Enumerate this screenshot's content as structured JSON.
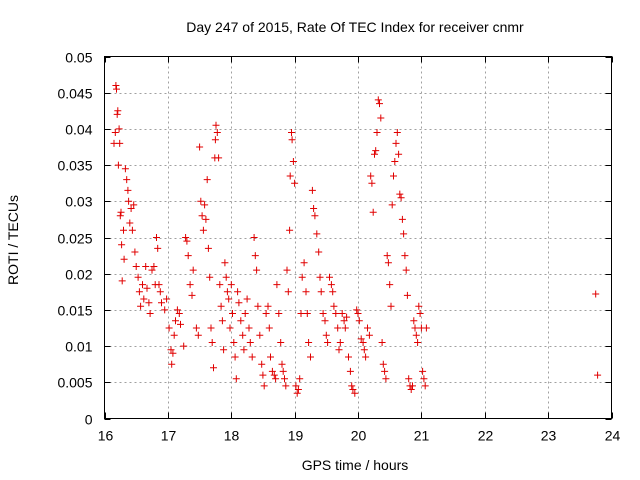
{
  "chart_data": {
    "type": "scatter",
    "title": "Day 247 of 2015, Rate Of TEC Index for receiver cnmr",
    "xlabel": "GPS time / hours",
    "ylabel": "ROTI / TECUs",
    "xlim": [
      16,
      24
    ],
    "ylim": [
      0,
      0.05
    ],
    "xticks": [
      "16",
      "17",
      "18",
      "19",
      "20",
      "21",
      "22",
      "23",
      "24"
    ],
    "yticks": [
      "0",
      "0.005",
      "0.01",
      "0.015",
      "0.02",
      "0.025",
      "0.03",
      "0.035",
      "0.04",
      "0.045",
      "0.05"
    ],
    "grid": true,
    "marker": "plus",
    "color": "#e00000",
    "series": [
      {
        "name": "ROTI",
        "points": [
          [
            16.15,
            0.038
          ],
          [
            16.17,
            0.0395
          ],
          [
            16.18,
            0.046
          ],
          [
            16.19,
            0.0455
          ],
          [
            16.2,
            0.042
          ],
          [
            16.21,
            0.0425
          ],
          [
            16.22,
            0.035
          ],
          [
            16.23,
            0.04
          ],
          [
            16.24,
            0.038
          ],
          [
            16.25,
            0.028
          ],
          [
            16.26,
            0.0285
          ],
          [
            16.27,
            0.024
          ],
          [
            16.28,
            0.019
          ],
          [
            16.3,
            0.026
          ],
          [
            16.31,
            0.022
          ],
          [
            16.33,
            0.0345
          ],
          [
            16.35,
            0.033
          ],
          [
            16.37,
            0.0315
          ],
          [
            16.38,
            0.03
          ],
          [
            16.4,
            0.027
          ],
          [
            16.42,
            0.029
          ],
          [
            16.44,
            0.026
          ],
          [
            16.46,
            0.0295
          ],
          [
            16.48,
            0.023
          ],
          [
            16.5,
            0.021
          ],
          [
            16.53,
            0.0195
          ],
          [
            16.55,
            0.0175
          ],
          [
            16.57,
            0.0155
          ],
          [
            16.6,
            0.0185
          ],
          [
            16.62,
            0.0165
          ],
          [
            16.65,
            0.021
          ],
          [
            16.67,
            0.018
          ],
          [
            16.7,
            0.016
          ],
          [
            16.72,
            0.0145
          ],
          [
            16.75,
            0.0205
          ],
          [
            16.78,
            0.021
          ],
          [
            16.8,
            0.0185
          ],
          [
            16.82,
            0.025
          ],
          [
            16.84,
            0.0235
          ],
          [
            16.86,
            0.0185
          ],
          [
            16.88,
            0.0175
          ],
          [
            16.9,
            0.016
          ],
          [
            16.95,
            0.015
          ],
          [
            16.98,
            0.0165
          ],
          [
            17.02,
            0.0125
          ],
          [
            17.05,
            0.0095
          ],
          [
            17.06,
            0.0075
          ],
          [
            17.08,
            0.009
          ],
          [
            17.1,
            0.0115
          ],
          [
            17.12,
            0.0135
          ],
          [
            17.15,
            0.015
          ],
          [
            17.18,
            0.0145
          ],
          [
            17.2,
            0.013
          ],
          [
            17.25,
            0.01
          ],
          [
            17.28,
            0.025
          ],
          [
            17.3,
            0.0245
          ],
          [
            17.32,
            0.0225
          ],
          [
            17.35,
            0.0185
          ],
          [
            17.38,
            0.017
          ],
          [
            17.4,
            0.0205
          ],
          [
            17.45,
            0.0125
          ],
          [
            17.48,
            0.0115
          ],
          [
            17.5,
            0.0375
          ],
          [
            17.52,
            0.03
          ],
          [
            17.54,
            0.028
          ],
          [
            17.56,
            0.026
          ],
          [
            17.58,
            0.0295
          ],
          [
            17.6,
            0.0275
          ],
          [
            17.62,
            0.033
          ],
          [
            17.64,
            0.0235
          ],
          [
            17.66,
            0.0195
          ],
          [
            17.68,
            0.0125
          ],
          [
            17.7,
            0.0105
          ],
          [
            17.72,
            0.007
          ],
          [
            17.74,
            0.036
          ],
          [
            17.75,
            0.0385
          ],
          [
            17.76,
            0.0405
          ],
          [
            17.78,
            0.0395
          ],
          [
            17.8,
            0.036
          ],
          [
            17.82,
            0.0185
          ],
          [
            17.84,
            0.0155
          ],
          [
            17.86,
            0.0135
          ],
          [
            17.88,
            0.0095
          ],
          [
            17.9,
            0.0215
          ],
          [
            17.92,
            0.0195
          ],
          [
            17.94,
            0.0175
          ],
          [
            17.96,
            0.0165
          ],
          [
            17.98,
            0.0125
          ],
          [
            18.0,
            0.0185
          ],
          [
            18.02,
            0.0145
          ],
          [
            18.04,
            0.0105
          ],
          [
            18.06,
            0.0085
          ],
          [
            18.08,
            0.0055
          ],
          [
            18.1,
            0.0175
          ],
          [
            18.12,
            0.016
          ],
          [
            18.15,
            0.0135
          ],
          [
            18.18,
            0.0115
          ],
          [
            18.2,
            0.0095
          ],
          [
            18.22,
            0.0145
          ],
          [
            18.25,
            0.0165
          ],
          [
            18.28,
            0.0125
          ],
          [
            18.3,
            0.0105
          ],
          [
            18.33,
            0.0085
          ],
          [
            18.36,
            0.025
          ],
          [
            18.38,
            0.0225
          ],
          [
            18.4,
            0.0205
          ],
          [
            18.42,
            0.0155
          ],
          [
            18.45,
            0.0115
          ],
          [
            18.48,
            0.0075
          ],
          [
            18.5,
            0.006
          ],
          [
            18.52,
            0.0045
          ],
          [
            18.55,
            0.0145
          ],
          [
            18.58,
            0.0155
          ],
          [
            18.6,
            0.0125
          ],
          [
            18.62,
            0.0085
          ],
          [
            18.65,
            0.0065
          ],
          [
            18.68,
            0.006
          ],
          [
            18.7,
            0.0055
          ],
          [
            18.72,
            0.0185
          ],
          [
            18.75,
            0.0145
          ],
          [
            18.78,
            0.0105
          ],
          [
            18.8,
            0.0075
          ],
          [
            18.82,
            0.0065
          ],
          [
            18.84,
            0.0055
          ],
          [
            18.86,
            0.0045
          ],
          [
            18.88,
            0.0205
          ],
          [
            18.9,
            0.0175
          ],
          [
            18.92,
            0.026
          ],
          [
            18.93,
            0.0335
          ],
          [
            18.95,
            0.0395
          ],
          [
            18.96,
            0.0385
          ],
          [
            18.98,
            0.0355
          ],
          [
            19.0,
            0.0325
          ],
          [
            19.02,
            0.0045
          ],
          [
            19.04,
            0.0035
          ],
          [
            19.06,
            0.004
          ],
          [
            19.08,
            0.0055
          ],
          [
            19.1,
            0.0145
          ],
          [
            19.12,
            0.0195
          ],
          [
            19.15,
            0.0215
          ],
          [
            19.18,
            0.0175
          ],
          [
            19.2,
            0.0145
          ],
          [
            19.22,
            0.0105
          ],
          [
            19.25,
            0.0085
          ],
          [
            19.28,
            0.0315
          ],
          [
            19.3,
            0.029
          ],
          [
            19.32,
            0.028
          ],
          [
            19.35,
            0.0255
          ],
          [
            19.38,
            0.023
          ],
          [
            19.4,
            0.0195
          ],
          [
            19.42,
            0.0175
          ],
          [
            19.45,
            0.0145
          ],
          [
            19.48,
            0.0135
          ],
          [
            19.5,
            0.0115
          ],
          [
            19.52,
            0.0105
          ],
          [
            19.55,
            0.0195
          ],
          [
            19.58,
            0.0185
          ],
          [
            19.6,
            0.0175
          ],
          [
            19.62,
            0.0155
          ],
          [
            19.65,
            0.0145
          ],
          [
            19.68,
            0.0125
          ],
          [
            19.7,
            0.0095
          ],
          [
            19.72,
            0.0105
          ],
          [
            19.75,
            0.0145
          ],
          [
            19.78,
            0.0135
          ],
          [
            19.8,
            0.0125
          ],
          [
            19.82,
            0.014
          ],
          [
            19.85,
            0.0085
          ],
          [
            19.88,
            0.0065
          ],
          [
            19.9,
            0.0045
          ],
          [
            19.92,
            0.004
          ],
          [
            19.95,
            0.0035
          ],
          [
            19.98,
            0.015
          ],
          [
            20.0,
            0.0145
          ],
          [
            20.02,
            0.0135
          ],
          [
            20.05,
            0.011
          ],
          [
            20.08,
            0.0105
          ],
          [
            20.1,
            0.0095
          ],
          [
            20.12,
            0.0085
          ],
          [
            20.15,
            0.0125
          ],
          [
            20.18,
            0.0115
          ],
          [
            20.2,
            0.0335
          ],
          [
            20.22,
            0.0325
          ],
          [
            20.24,
            0.0285
          ],
          [
            20.26,
            0.0365
          ],
          [
            20.28,
            0.037
          ],
          [
            20.3,
            0.0395
          ],
          [
            20.32,
            0.044
          ],
          [
            20.34,
            0.0435
          ],
          [
            20.36,
            0.0415
          ],
          [
            20.38,
            0.0105
          ],
          [
            20.4,
            0.0075
          ],
          [
            20.42,
            0.0065
          ],
          [
            20.44,
            0.0055
          ],
          [
            20.46,
            0.0225
          ],
          [
            20.48,
            0.0215
          ],
          [
            20.5,
            0.0185
          ],
          [
            20.52,
            0.0155
          ],
          [
            20.54,
            0.0295
          ],
          [
            20.56,
            0.0335
          ],
          [
            20.58,
            0.0355
          ],
          [
            20.6,
            0.038
          ],
          [
            20.62,
            0.0395
          ],
          [
            20.64,
            0.0365
          ],
          [
            20.66,
            0.031
          ],
          [
            20.68,
            0.0305
          ],
          [
            20.7,
            0.0275
          ],
          [
            20.72,
            0.0255
          ],
          [
            20.74,
            0.0225
          ],
          [
            20.76,
            0.0205
          ],
          [
            20.78,
            0.017
          ],
          [
            20.8,
            0.0055
          ],
          [
            20.82,
            0.0045
          ],
          [
            20.84,
            0.004
          ],
          [
            20.86,
            0.0045
          ],
          [
            20.88,
            0.0135
          ],
          [
            20.9,
            0.0125
          ],
          [
            20.92,
            0.0115
          ],
          [
            20.94,
            0.0105
          ],
          [
            20.96,
            0.0155
          ],
          [
            20.98,
            0.0145
          ],
          [
            21.0,
            0.0125
          ],
          [
            21.02,
            0.0065
          ],
          [
            21.04,
            0.0055
          ],
          [
            21.06,
            0.0045
          ],
          [
            21.08,
            0.0125
          ],
          [
            23.75,
            0.0172
          ],
          [
            23.78,
            0.006
          ]
        ]
      }
    ]
  }
}
